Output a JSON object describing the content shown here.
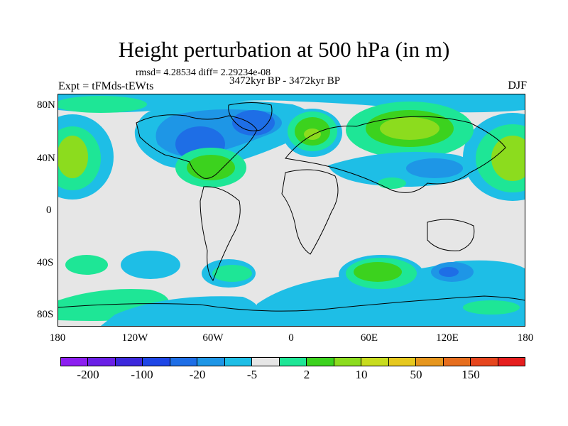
{
  "title": "Height perturbation at 500 hPa (in m)",
  "stats": "rmsd= 4.28534 diff= 2.29234e-08",
  "period": "3472kyr BP - 3472kyr BP",
  "experiment": "Expt = tFMds-tEWts",
  "season": "DJF",
  "map": {
    "lat_labels": [
      "80N",
      "40N",
      "0",
      "40S",
      "80S"
    ],
    "lon_labels": [
      "180",
      "120W",
      "60W",
      "0",
      "60E",
      "120E",
      "180"
    ],
    "background_color": "#e6e6e6"
  },
  "colorbar": {
    "colors": [
      "#8c1ef0",
      "#6a20e6",
      "#3c28dc",
      "#1e46e6",
      "#1e6ee6",
      "#1e96e6",
      "#1ebee6",
      "#e6e6e6",
      "#1ee696",
      "#3cd21e",
      "#8cdc1e",
      "#c8dc1e",
      "#e6c81e",
      "#e6961e",
      "#e66e1e",
      "#e6461e",
      "#e61e1e"
    ],
    "labels": [
      "-200",
      "-100",
      "-20",
      "-5",
      "2",
      "10",
      "50",
      "150"
    ]
  },
  "anomaly_regions": [
    {
      "name": "north-pacific-positive",
      "sign": "positive"
    },
    {
      "name": "north-america-negative",
      "sign": "negative"
    },
    {
      "name": "west-atlantic-positive",
      "sign": "positive"
    },
    {
      "name": "europe-positive",
      "sign": "positive"
    },
    {
      "name": "central-asia-positive",
      "sign": "positive"
    },
    {
      "name": "east-asia-negative",
      "sign": "negative"
    },
    {
      "name": "southern-ocean-negative",
      "sign": "negative"
    },
    {
      "name": "south-indian-positive",
      "sign": "positive"
    },
    {
      "name": "antarctica-positive",
      "sign": "positive"
    }
  ]
}
